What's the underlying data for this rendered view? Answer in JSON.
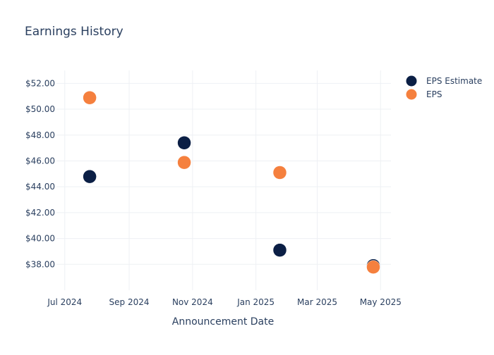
{
  "chart_data": {
    "type": "scatter",
    "title": "Earnings History",
    "xlabel": "Announcement Date",
    "ylabel": "",
    "x_ticks": [
      "Jul 2024",
      "Sep 2024",
      "Nov 2024",
      "Jan 2025",
      "Mar 2025",
      "May 2025"
    ],
    "x_tick_dates": [
      "2024-07-01",
      "2024-09-01",
      "2024-11-01",
      "2025-01-01",
      "2025-03-01",
      "2025-05-01"
    ],
    "xlim": [
      "2024-06-23",
      "2025-05-11"
    ],
    "y_ticks": [
      38,
      40,
      42,
      44,
      46,
      48,
      50,
      52
    ],
    "y_tick_labels": [
      "$38.00",
      "$40.00",
      "$42.00",
      "$44.00",
      "$46.00",
      "$48.00",
      "$50.00",
      "$52.00"
    ],
    "ylim": [
      36.0,
      53.0
    ],
    "grid": true,
    "legend_position": "right",
    "series": [
      {
        "name": "EPS Estimate",
        "color": "#0b1f45",
        "points": [
          {
            "x": "2024-07-25",
            "y": 44.79
          },
          {
            "x": "2024-10-24",
            "y": 47.4
          },
          {
            "x": "2025-01-24",
            "y": 39.1
          },
          {
            "x": "2025-04-24",
            "y": 37.9
          }
        ]
      },
      {
        "name": "EPS",
        "color": "#f5803e",
        "points": [
          {
            "x": "2024-07-25",
            "y": 50.89
          },
          {
            "x": "2024-10-24",
            "y": 45.88
          },
          {
            "x": "2025-01-24",
            "y": 45.1
          },
          {
            "x": "2025-04-24",
            "y": 37.79
          }
        ]
      }
    ]
  }
}
